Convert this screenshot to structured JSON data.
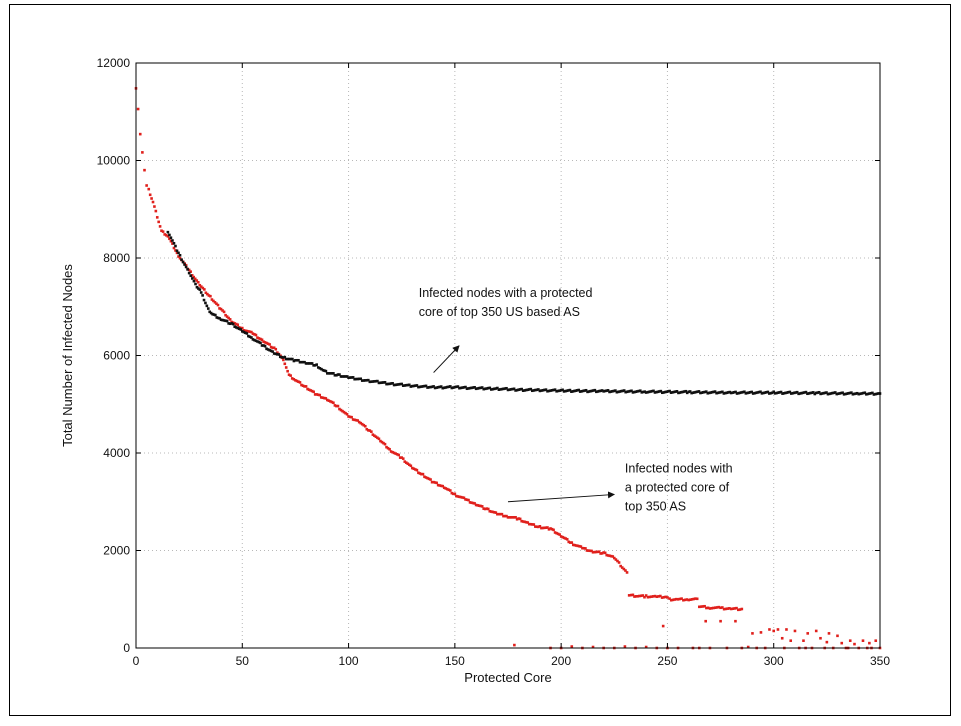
{
  "chart_data": {
    "type": "scatter",
    "title": "",
    "xlabel": "Protected Core",
    "ylabel": "Total Number of Infected Nodes",
    "xlim": [
      0,
      350
    ],
    "ylim": [
      0,
      12000
    ],
    "xticks": [
      0,
      50,
      100,
      150,
      200,
      250,
      300,
      350
    ],
    "yticks": [
      0,
      2000,
      4000,
      6000,
      8000,
      10000,
      12000
    ],
    "grid": true,
    "series": [
      {
        "color": "#e0201c",
        "curve": [
          [
            0,
            11500
          ],
          [
            1,
            11050
          ],
          [
            2,
            10550
          ],
          [
            3,
            10150
          ],
          [
            4,
            9800
          ],
          [
            5,
            9500
          ],
          [
            6,
            9400
          ],
          [
            8,
            9150
          ],
          [
            10,
            8850
          ],
          [
            12,
            8550
          ],
          [
            15,
            8450
          ],
          [
            20,
            8050
          ],
          [
            25,
            7750
          ],
          [
            30,
            7450
          ],
          [
            35,
            7200
          ],
          [
            40,
            6950
          ],
          [
            45,
            6700
          ],
          [
            50,
            6550
          ],
          [
            55,
            6450
          ],
          [
            60,
            6300
          ],
          [
            65,
            6150
          ],
          [
            68,
            6000
          ],
          [
            70,
            5850
          ],
          [
            72,
            5600
          ],
          [
            75,
            5500
          ],
          [
            80,
            5350
          ],
          [
            85,
            5200
          ],
          [
            90,
            5100
          ],
          [
            95,
            4950
          ],
          [
            100,
            4750
          ],
          [
            105,
            4650
          ],
          [
            110,
            4450
          ],
          [
            115,
            4250
          ],
          [
            120,
            4050
          ],
          [
            125,
            3900
          ],
          [
            130,
            3700
          ],
          [
            135,
            3550
          ],
          [
            140,
            3400
          ],
          [
            145,
            3300
          ],
          [
            150,
            3150
          ],
          [
            155,
            3050
          ],
          [
            160,
            2950
          ],
          [
            165,
            2850
          ],
          [
            170,
            2750
          ],
          [
            175,
            2700
          ],
          [
            180,
            2650
          ],
          [
            185,
            2550
          ],
          [
            190,
            2480
          ],
          [
            195,
            2450
          ],
          [
            200,
            2300
          ],
          [
            205,
            2150
          ],
          [
            210,
            2050
          ],
          [
            215,
            1980
          ],
          [
            220,
            1950
          ],
          [
            225,
            1850
          ],
          [
            228,
            1700
          ],
          [
            231,
            1550
          ]
        ],
        "steps": [
          [
            232,
            1100
          ],
          [
            233,
            1080
          ],
          [
            236,
            1070
          ],
          [
            240,
            1060
          ],
          [
            245,
            1050
          ],
          [
            250,
            1050
          ],
          [
            251,
            1000
          ],
          [
            255,
            1000
          ],
          [
            260,
            1000
          ],
          [
            264,
            1000
          ],
          [
            265,
            850
          ],
          [
            270,
            830
          ],
          [
            275,
            820
          ],
          [
            280,
            810
          ],
          [
            285,
            800
          ]
        ],
        "scatter": [
          [
            178,
            60
          ],
          [
            195,
            0
          ],
          [
            200,
            0
          ],
          [
            205,
            30
          ],
          [
            210,
            0
          ],
          [
            215,
            20
          ],
          [
            220,
            0
          ],
          [
            225,
            0
          ],
          [
            230,
            30
          ],
          [
            235,
            0
          ],
          [
            240,
            20
          ],
          [
            245,
            0
          ],
          [
            248,
            450
          ],
          [
            250,
            0
          ],
          [
            255,
            0
          ],
          [
            262,
            0
          ],
          [
            265,
            0
          ],
          [
            268,
            550
          ],
          [
            270,
            0
          ],
          [
            275,
            550
          ],
          [
            278,
            0
          ],
          [
            282,
            550
          ],
          [
            285,
            0
          ],
          [
            288,
            20
          ],
          [
            290,
            300
          ],
          [
            292,
            0
          ],
          [
            294,
            320
          ],
          [
            296,
            0
          ],
          [
            298,
            380
          ],
          [
            300,
            350
          ],
          [
            302,
            380
          ],
          [
            304,
            200
          ],
          [
            305,
            0
          ],
          [
            306,
            380
          ],
          [
            308,
            150
          ],
          [
            310,
            350
          ],
          [
            312,
            0
          ],
          [
            314,
            150
          ],
          [
            315,
            0
          ],
          [
            316,
            300
          ],
          [
            318,
            0
          ],
          [
            320,
            350
          ],
          [
            322,
            200
          ],
          [
            324,
            0
          ],
          [
            325,
            120
          ],
          [
            326,
            300
          ],
          [
            328,
            0
          ],
          [
            330,
            250
          ],
          [
            332,
            100
          ],
          [
            334,
            0
          ],
          [
            335,
            0
          ],
          [
            336,
            150
          ],
          [
            338,
            80
          ],
          [
            340,
            0
          ],
          [
            342,
            150
          ],
          [
            344,
            0
          ],
          [
            345,
            100
          ],
          [
            346,
            0
          ],
          [
            348,
            150
          ],
          [
            350,
            0
          ]
        ]
      },
      {
        "color": "#111111",
        "curve": [
          [
            15,
            8550
          ],
          [
            20,
            8100
          ],
          [
            25,
            7700
          ],
          [
            28,
            7450
          ],
          [
            30,
            7350
          ],
          [
            32,
            7150
          ],
          [
            34,
            6950
          ],
          [
            36,
            6850
          ],
          [
            40,
            6750
          ],
          [
            45,
            6650
          ],
          [
            50,
            6500
          ],
          [
            55,
            6350
          ],
          [
            60,
            6200
          ],
          [
            65,
            6050
          ],
          [
            70,
            5950
          ],
          [
            75,
            5900
          ],
          [
            80,
            5850
          ],
          [
            85,
            5800
          ],
          [
            88,
            5700
          ],
          [
            90,
            5650
          ],
          [
            95,
            5600
          ],
          [
            100,
            5550
          ],
          [
            110,
            5480
          ],
          [
            120,
            5420
          ],
          [
            130,
            5380
          ],
          [
            140,
            5350
          ],
          [
            150,
            5350
          ],
          [
            160,
            5330
          ],
          [
            170,
            5320
          ],
          [
            180,
            5300
          ],
          [
            190,
            5290
          ],
          [
            200,
            5280
          ],
          [
            220,
            5270
          ],
          [
            240,
            5260
          ],
          [
            260,
            5250
          ],
          [
            280,
            5240
          ],
          [
            300,
            5240
          ],
          [
            320,
            5230
          ],
          [
            340,
            5220
          ],
          [
            350,
            5220
          ]
        ]
      }
    ],
    "annotations": [
      {
        "lines": [
          "Infected nodes with a protected",
          "core of top 350 US based AS"
        ],
        "text_x": 133,
        "text_y": 7200,
        "arrow_from": [
          140,
          5650
        ],
        "arrow_to": [
          152,
          6200
        ]
      },
      {
        "lines": [
          "Infected nodes with",
          "a protected core of",
          "top 350 AS"
        ],
        "text_x": 230,
        "text_y": 3600,
        "arrow_from": [
          175,
          3000
        ],
        "arrow_to": [
          225,
          3150
        ]
      }
    ]
  }
}
